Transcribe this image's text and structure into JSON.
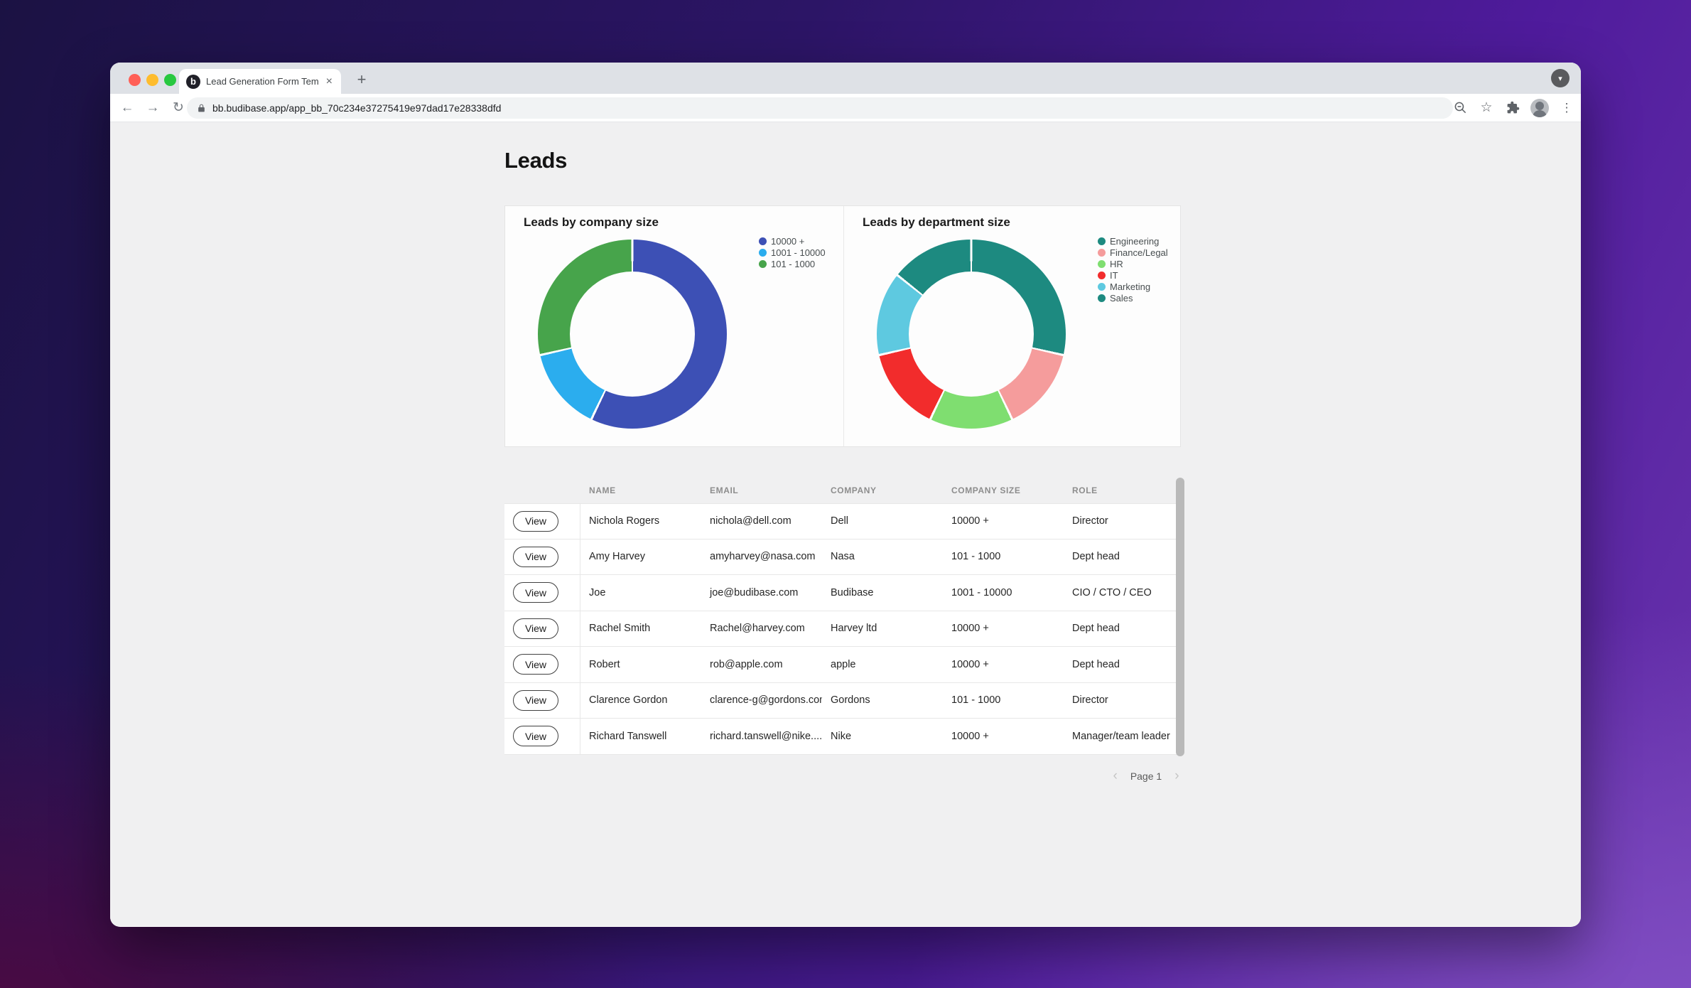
{
  "browser": {
    "tab": {
      "title": "Lead Generation Form Templat",
      "favicon_letter": "b",
      "close_icon": "×"
    },
    "new_tab_icon": "+",
    "tab_search_icon": "▾",
    "nav": {
      "back_icon": "←",
      "forward_icon": "→",
      "reload_icon": "↻"
    },
    "url": "bb.budibase.app/app_bb_70c234e37275419e97dad17e28338dfd",
    "actions": {
      "star_icon": "☆",
      "menu_icon": "⋮"
    }
  },
  "page": {
    "title": "Leads"
  },
  "chart_data": [
    {
      "type": "donut",
      "title": "Leads by company size",
      "labels": [
        "10000 +",
        "1001 - 10000",
        "101 - 1000"
      ],
      "values": [
        4,
        1,
        2
      ],
      "total": 7,
      "percentages": [
        57.1,
        14.3,
        28.6
      ],
      "colors": [
        "#3D50B5",
        "#2BADEE",
        "#47A44B"
      ],
      "legend_position": "right",
      "start_angle_deg": 0,
      "direction": "clockwise"
    },
    {
      "type": "donut",
      "title": "Leads by department size",
      "labels": [
        "Engineering",
        "Finance/Legal",
        "HR",
        "IT",
        "Marketing",
        "Sales"
      ],
      "values": [
        2,
        1,
        1,
        1,
        1,
        1
      ],
      "total": 7,
      "percentages": [
        28.6,
        14.3,
        14.3,
        14.3,
        14.3,
        14.3
      ],
      "colors": [
        "#1D8A80",
        "#F59C9C",
        "#7FDE70",
        "#F22C2C",
        "#5EC9E0",
        "#1D8A80"
      ],
      "legend_position": "right",
      "start_angle_deg": 0,
      "direction": "clockwise"
    }
  ],
  "table": {
    "action_label": "View",
    "headers": [
      "NAME",
      "EMAIL",
      "COMPANY",
      "COMPANY SIZE",
      "ROLE"
    ],
    "rows": [
      {
        "name": "Nichola Rogers",
        "email": "nichola@dell.com",
        "company": "Dell",
        "company_size": "10000 +",
        "role": "Director"
      },
      {
        "name": "Amy Harvey",
        "email": "amyharvey@nasa.com",
        "company": "Nasa",
        "company_size": "101 - 1000",
        "role": "Dept head"
      },
      {
        "name": "Joe",
        "email": "joe@budibase.com",
        "company": "Budibase",
        "company_size": "1001 - 10000",
        "role": "CIO / CTO / CEO"
      },
      {
        "name": "Rachel Smith",
        "email": "Rachel@harvey.com",
        "company": "Harvey ltd",
        "company_size": "10000 +",
        "role": "Dept head"
      },
      {
        "name": "Robert",
        "email": "rob@apple.com",
        "company": "apple",
        "company_size": "10000 +",
        "role": "Dept head"
      },
      {
        "name": "Clarence Gordon",
        "email": "clarence-g@gordons.com",
        "company": "Gordons",
        "company_size": "101 - 1000",
        "role": "Director"
      },
      {
        "name": "Richard Tanswell",
        "email": "richard.tanswell@nike....",
        "company": "Nike",
        "company_size": "10000 +",
        "role": "Manager/team leader"
      }
    ]
  },
  "pagination": {
    "prev_icon": "‹",
    "label": "Page 1",
    "next_icon": "›"
  }
}
